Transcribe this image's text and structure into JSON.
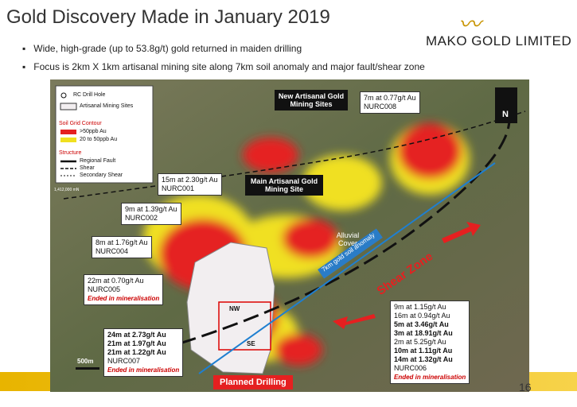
{
  "header": {
    "title": "Gold Discovery Made in January 2019",
    "logo": "MAKO GOLD LIMITED",
    "bullets": [
      "Wide, high-grade (up to 53.8g/t) gold returned in maiden drilling",
      "Focus is 2km X 1km artisanal mining site along 7km soil anomaly and major fault/shear zone"
    ]
  },
  "map": {
    "legend": {
      "drill": "RC Drill Hole",
      "sites": "Artisanal Mining Sites",
      "soil": "Soil Grid Contour",
      "high": ">50ppb Au",
      "mid": "20 to 50ppb Au",
      "structure": "Structure",
      "fault": "Regional Fault",
      "shear": "Shear",
      "secondary": "Secondary Shear"
    },
    "labels": {
      "new_sites": "New Artisanal Gold Mining Sites",
      "main_site": "Main Artisanal Gold Mining Site",
      "alluvial": "Alluvial Cover",
      "anomaly": "7km gold soil anomaly",
      "shear_zone": "Shear Zone",
      "planned": "Planned Drilling",
      "nw": "NW",
      "se": "SE",
      "scale": "500m",
      "north": "N",
      "northing": "1,412,000 mN"
    },
    "callouts": [
      {
        "lines": [
          "7m at 0.77g/t Au",
          "NURC008"
        ]
      },
      {
        "lines": [
          "15m at 2.30g/t Au",
          "NURC001"
        ]
      },
      {
        "lines": [
          "9m at 1.39g/t Au",
          "NURC002"
        ]
      },
      {
        "lines": [
          "8m at 1.76g/t Au",
          "NURC004"
        ]
      },
      {
        "lines": [
          "22m at 0.70g/t Au",
          "NURC005"
        ],
        "note": "Ended in mineralisation"
      },
      {
        "lines": [
          "24m at 2.73g/t Au",
          "21m at 1.97g/t Au",
          "21m at 1.22g/t Au",
          "NURC007"
        ],
        "note": "Ended in mineralisation"
      },
      {
        "lines": [
          "9m at 1.15g/t Au",
          "16m at 0.94g/t Au",
          "5m at 3.46g/t Au",
          "3m at 18.91g/t Au",
          "2m at 5.25g/t Au",
          "10m at 1.11g/t Au",
          "14m at 1.32g/t Au",
          "NURC006"
        ],
        "note": "Ended in mineralisation"
      }
    ]
  },
  "footer": {
    "page": "16"
  }
}
